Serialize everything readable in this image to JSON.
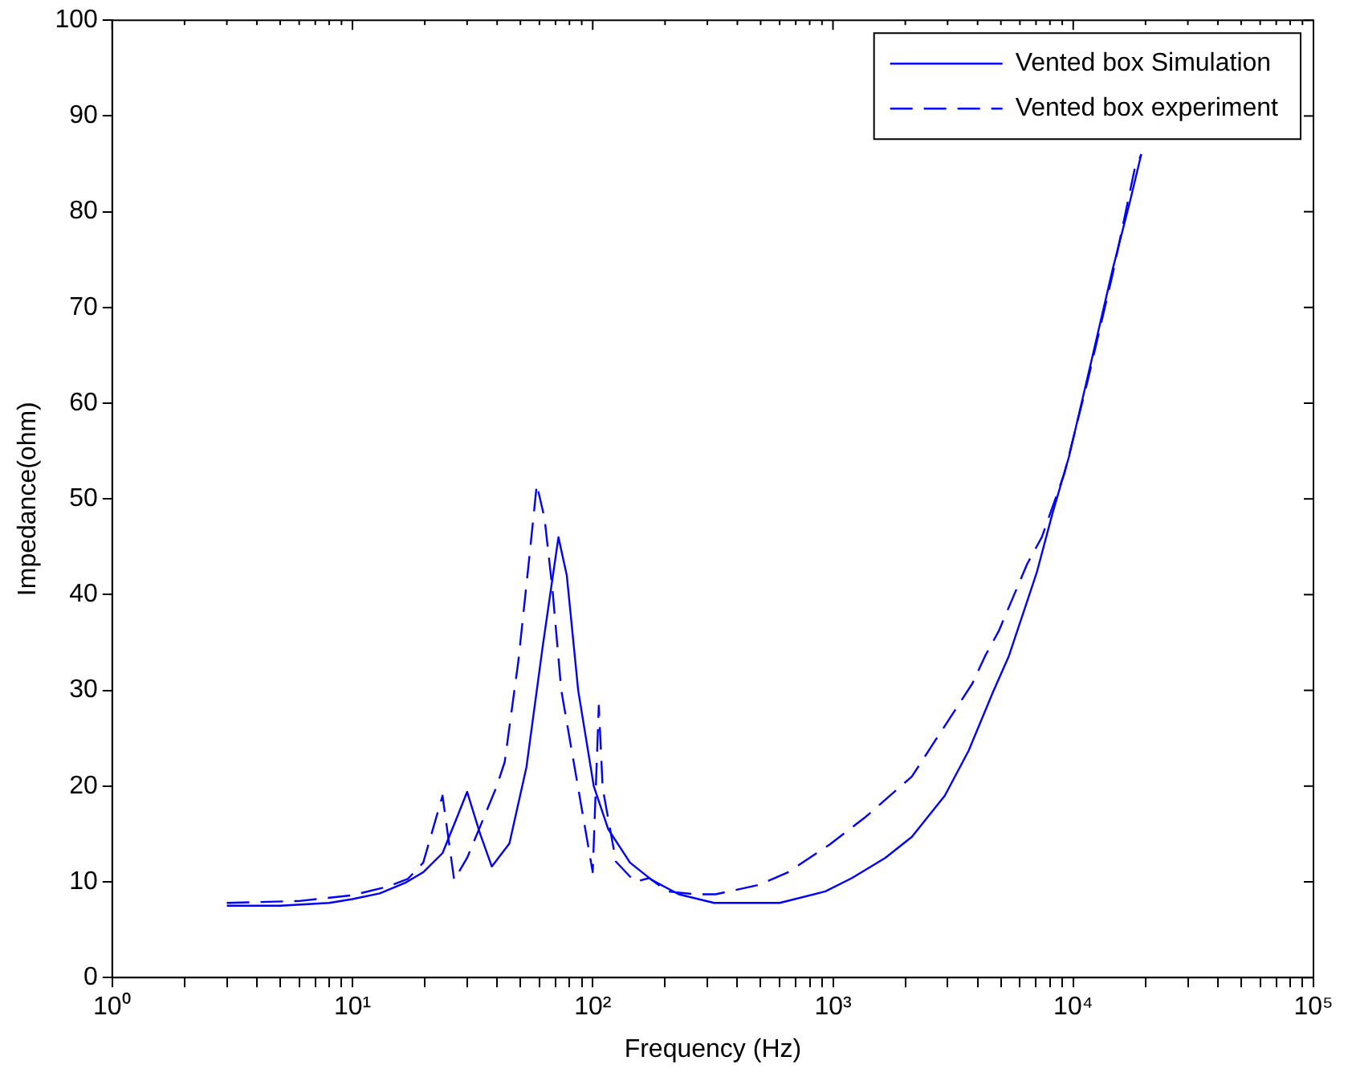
{
  "chart_data": {
    "type": "line",
    "xlabel": "Frequency (Hz)",
    "ylabel": "Impedance(ohm)",
    "log": "x",
    "grid": false,
    "legend": "top right",
    "marker": "none",
    "xlim": [
      1,
      100000
    ],
    "ylim": [
      0,
      100
    ],
    "xticks": [
      {
        "value": 1,
        "label": "10⁰"
      },
      {
        "value": 2,
        "label": null
      },
      {
        "value": 3,
        "label": null
      },
      {
        "value": 4,
        "label": null
      },
      {
        "value": 5,
        "label": null
      },
      {
        "value": 6,
        "label": null
      },
      {
        "value": 7,
        "label": null
      },
      {
        "value": 8,
        "label": null
      },
      {
        "value": 9,
        "label": null
      },
      {
        "value": 10,
        "label": "10¹"
      },
      {
        "value": 20,
        "label": null
      },
      {
        "value": 30,
        "label": null
      },
      {
        "value": 40,
        "label": null
      },
      {
        "value": 50,
        "label": null
      },
      {
        "value": 60,
        "label": null
      },
      {
        "value": 70,
        "label": null
      },
      {
        "value": 80,
        "label": null
      },
      {
        "value": 90,
        "label": null
      },
      {
        "value": 100,
        "label": "10²"
      },
      {
        "value": 200,
        "label": null
      },
      {
        "value": 300,
        "label": null
      },
      {
        "value": 400,
        "label": null
      },
      {
        "value": 500,
        "label": null
      },
      {
        "value": 600,
        "label": null
      },
      {
        "value": 700,
        "label": null
      },
      {
        "value": 800,
        "label": null
      },
      {
        "value": 900,
        "label": null
      },
      {
        "value": 1000,
        "label": "10³"
      },
      {
        "value": 2000,
        "label": null
      },
      {
        "value": 3000,
        "label": null
      },
      {
        "value": 4000,
        "label": null
      },
      {
        "value": 5000,
        "label": null
      },
      {
        "value": 6000,
        "label": null
      },
      {
        "value": 7000,
        "label": null
      },
      {
        "value": 8000,
        "label": null
      },
      {
        "value": 9000,
        "label": null
      },
      {
        "value": 10000,
        "label": "10⁴"
      },
      {
        "value": 20000,
        "label": null
      },
      {
        "value": 30000,
        "label": null
      },
      {
        "value": 40000,
        "label": null
      },
      {
        "value": 50000,
        "label": null
      },
      {
        "value": 60000,
        "label": null
      },
      {
        "value": 70000,
        "label": null
      },
      {
        "value": 80000,
        "label": null
      },
      {
        "value": 90000,
        "label": null
      },
      {
        "value": 100000,
        "label": "10⁵"
      }
    ],
    "yticks": [
      0,
      10,
      20,
      30,
      40,
      50,
      60,
      70,
      80,
      90,
      100
    ],
    "series": [
      {
        "name": "Vented box Simulation",
        "color": "#0000ff",
        "line_style": "solid",
        "x": [
          3,
          5,
          8,
          10,
          13,
          16.6,
          19.7,
          23.7,
          27,
          30,
          34,
          38,
          45,
          53,
          62,
          72,
          78,
          87,
          101,
          116,
          143,
          176,
          228,
          320,
          600,
          930,
          1200,
          1650,
          2130,
          2920,
          3670,
          4630,
          5400,
          7050,
          8200,
          9600,
          11800,
          14600,
          17200,
          19200
        ],
        "values": [
          7.5,
          7.5,
          7.8,
          8.2,
          8.8,
          9.9,
          11,
          13,
          16.5,
          19.4,
          15,
          11.6,
          14,
          22,
          34.7,
          46,
          42,
          30,
          20,
          15.5,
          12,
          10.2,
          8.7,
          7.8,
          7.8,
          9,
          10.4,
          12.5,
          14.7,
          19,
          23.7,
          29.8,
          33.6,
          42.3,
          48.5,
          54.4,
          64,
          74,
          81,
          86
        ]
      },
      {
        "name": "Vented box experiment",
        "color": "#0000ff",
        "line_style": "dashed",
        "x": [
          3,
          6,
          10,
          14,
          17,
          19.7,
          23.7,
          26.5,
          30,
          39.6,
          43,
          49,
          54,
          58.5,
          63,
          68,
          74,
          87,
          100,
          106,
          110,
          125,
          150,
          172,
          204,
          266,
          325,
          495,
          650,
          970,
          1370,
          2130,
          2640,
          3800,
          4300,
          4900,
          6430,
          7400,
          9200,
          11500,
          14600,
          18000,
          19200
        ],
        "values": [
          7.8,
          8,
          8.6,
          9.5,
          10.3,
          12,
          19,
          10.2,
          12.5,
          19.8,
          22.5,
          33,
          43,
          51.5,
          48,
          40.5,
          30,
          19.8,
          11,
          28.4,
          19.8,
          12.1,
          10,
          10.4,
          9,
          8.7,
          8.7,
          9.7,
          11,
          13.9,
          16.8,
          21,
          24.6,
          30.7,
          33.6,
          36.2,
          43.2,
          46,
          52.7,
          62.4,
          73.5,
          84.4,
          86
        ]
      }
    ]
  }
}
